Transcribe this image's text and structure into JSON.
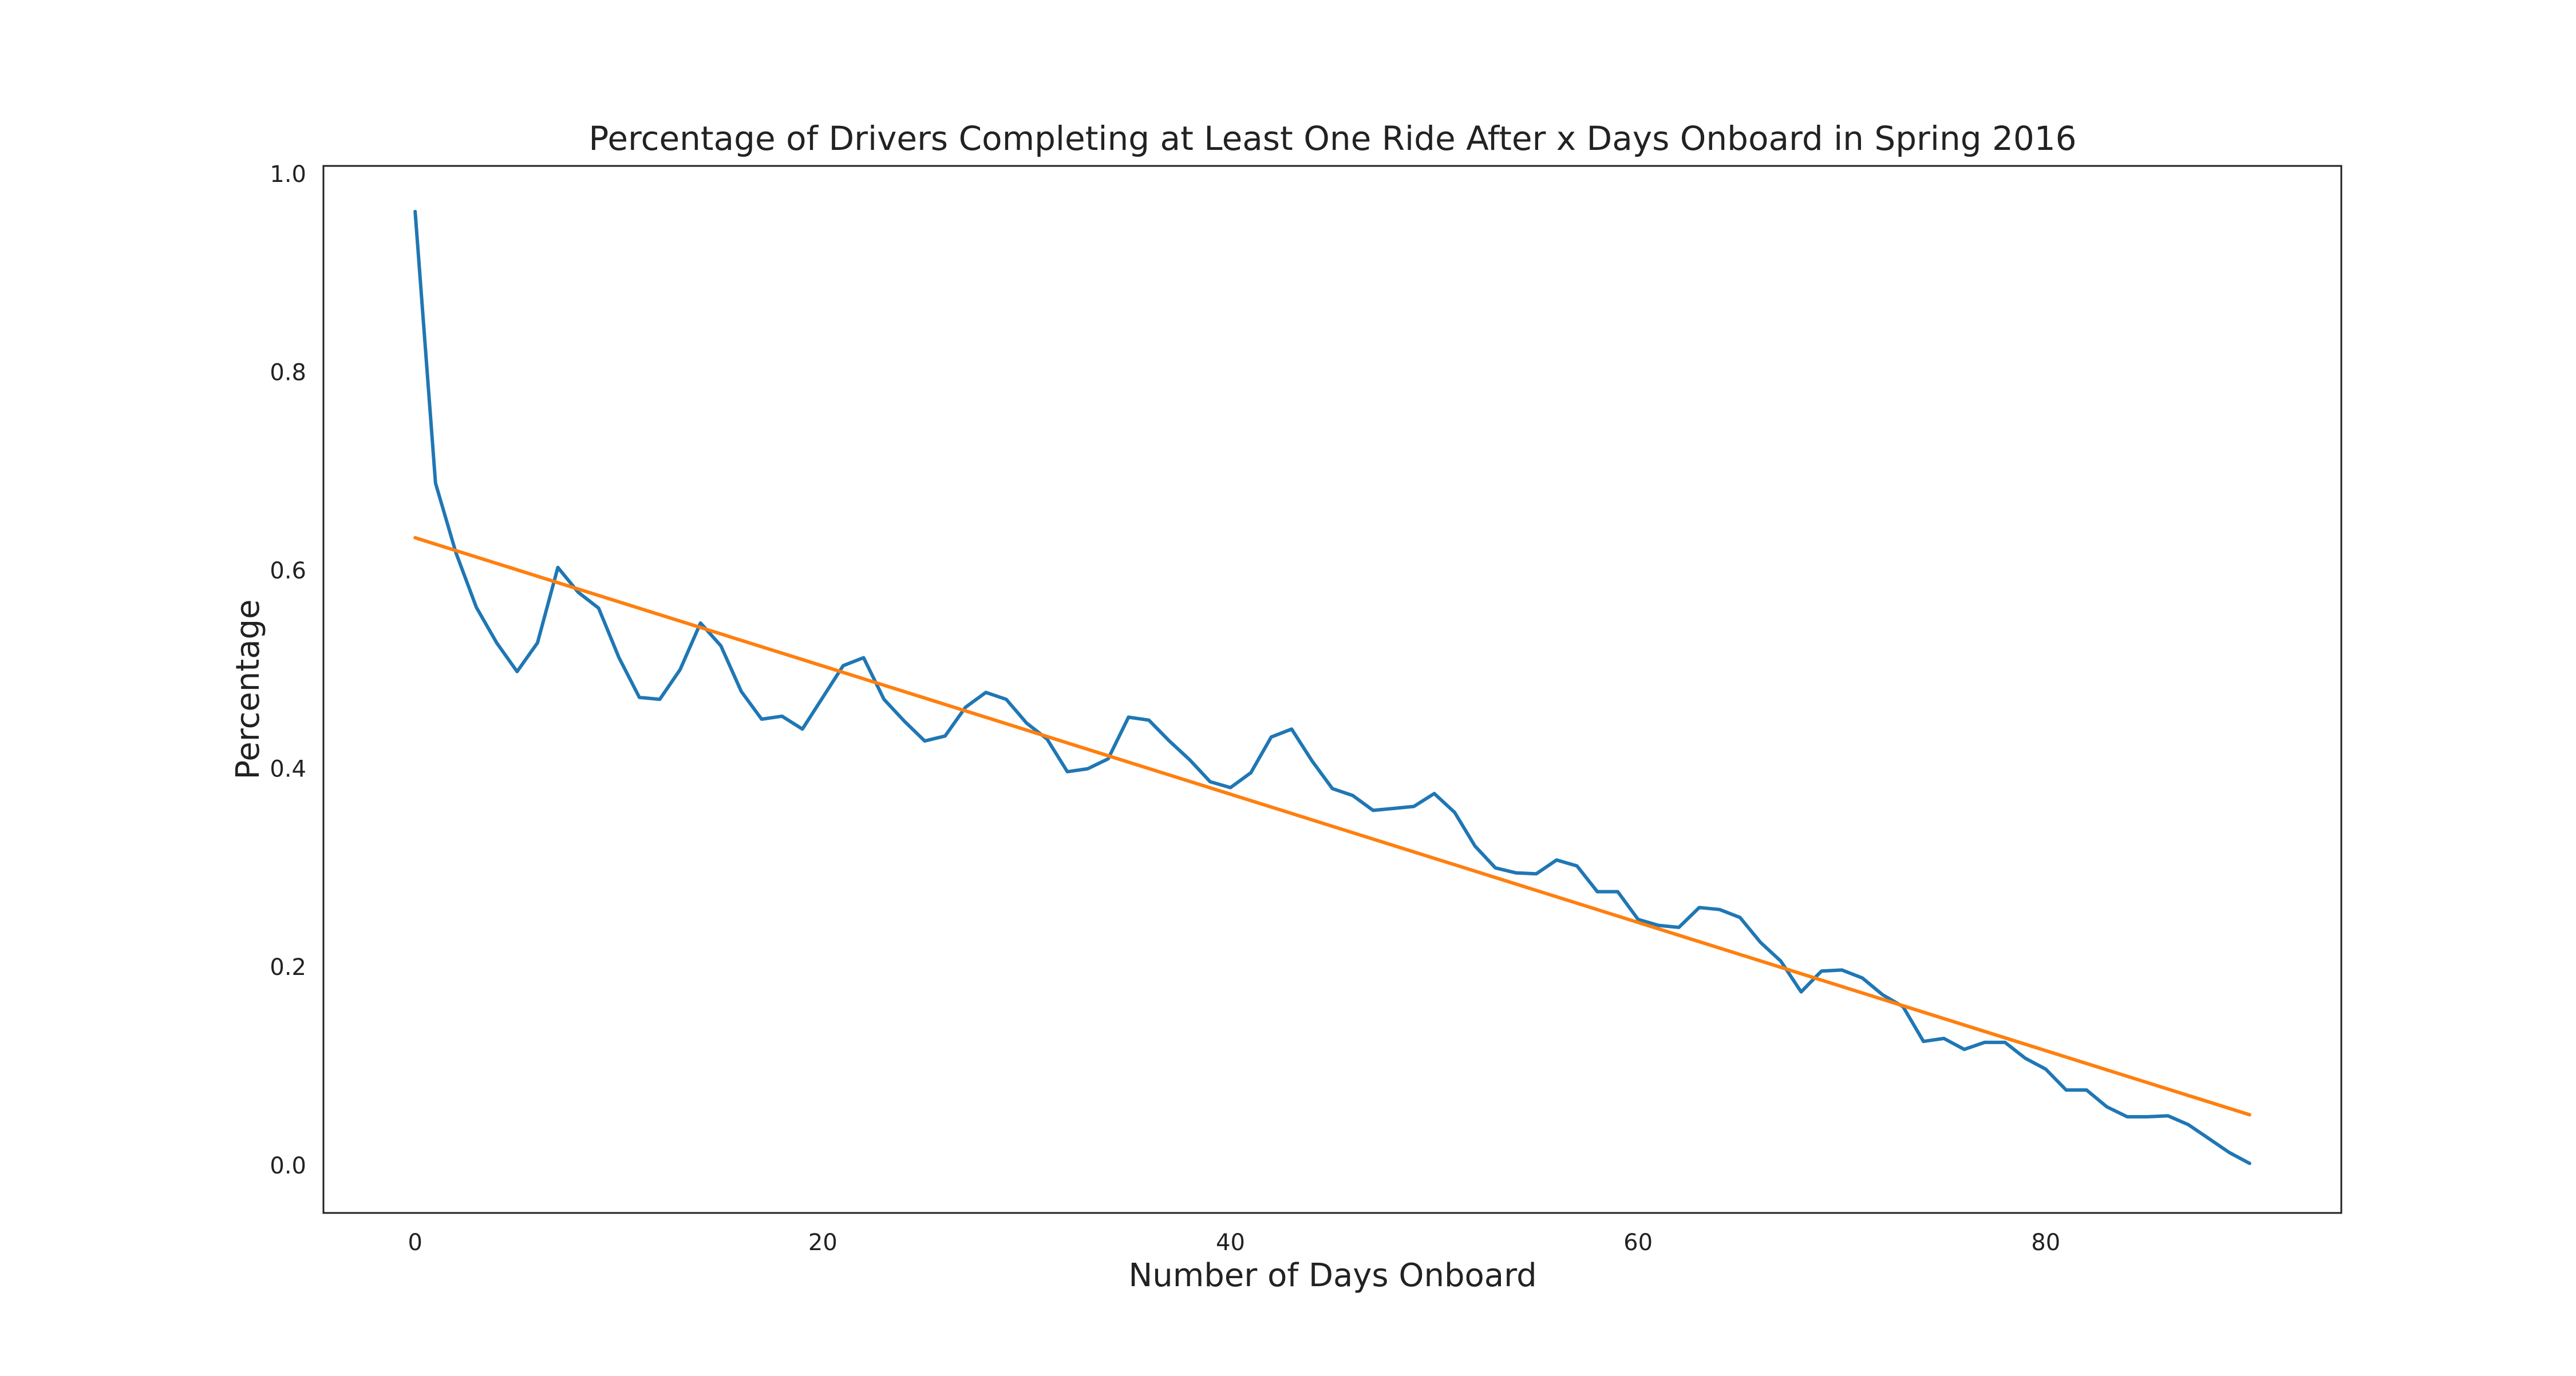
{
  "chart_data": {
    "type": "line",
    "title": "Percentage of Drivers Completing at Least One Ride After x Days Onboard in Spring 2016",
    "xlabel": "Number of Days Onboard",
    "ylabel": "Percentage",
    "xlim": [
      -4.5,
      94.5
    ],
    "ylim": [
      -0.048,
      1.008
    ],
    "x_ticks": [
      0,
      20,
      40,
      60,
      80
    ],
    "y_ticks": [
      0.0,
      0.2,
      0.4,
      0.6,
      0.8,
      1.0
    ],
    "x_tick_labels": [
      "0",
      "20",
      "40",
      "60",
      "80"
    ],
    "y_tick_labels": [
      "0.0",
      "0.2",
      "0.4",
      "0.6",
      "0.8",
      "1.0"
    ],
    "grid": false,
    "legend": "none",
    "series": [
      {
        "color": "#1f77b4",
        "x": [
          0,
          1,
          2,
          3,
          4,
          5,
          6,
          7,
          8,
          9,
          10,
          11,
          12,
          13,
          14,
          15,
          16,
          17,
          18,
          19,
          20,
          21,
          22,
          23,
          24,
          25,
          26,
          27,
          28,
          29,
          30,
          31,
          32,
          33,
          34,
          35,
          36,
          37,
          38,
          39,
          40,
          41,
          42,
          43,
          44,
          45,
          46,
          47,
          48,
          49,
          50,
          51,
          52,
          53,
          54,
          55,
          56,
          57,
          58,
          59,
          60,
          61,
          62,
          63,
          64,
          65,
          66,
          67,
          68,
          69,
          70,
          71,
          72,
          73,
          74,
          75,
          76,
          77,
          78,
          79,
          80,
          81,
          82,
          83,
          84,
          85,
          86,
          87,
          88,
          89,
          90
        ],
        "values": [
          0.962,
          0.688,
          0.618,
          0.563,
          0.527,
          0.498,
          0.527,
          0.603,
          0.578,
          0.562,
          0.512,
          0.472,
          0.47,
          0.5,
          0.547,
          0.524,
          0.478,
          0.45,
          0.453,
          0.44,
          0.472,
          0.504,
          0.512,
          0.47,
          0.448,
          0.428,
          0.433,
          0.462,
          0.477,
          0.47,
          0.446,
          0.43,
          0.397,
          0.4,
          0.41,
          0.452,
          0.449,
          0.428,
          0.409,
          0.387,
          0.381,
          0.396,
          0.432,
          0.44,
          0.408,
          0.38,
          0.373,
          0.358,
          0.36,
          0.362,
          0.375,
          0.356,
          0.322,
          0.3,
          0.295,
          0.294,
          0.308,
          0.302,
          0.276,
          0.276,
          0.248,
          0.242,
          0.24,
          0.26,
          0.258,
          0.25,
          0.225,
          0.206,
          0.175,
          0.196,
          0.197,
          0.189,
          0.172,
          0.16,
          0.125,
          0.128,
          0.117,
          0.124,
          0.124,
          0.108,
          0.097,
          0.076,
          0.076,
          0.059,
          0.049,
          0.049,
          0.05,
          0.041,
          0.027,
          0.013,
          0.002
        ]
      },
      {
        "color": "#ff7f0e",
        "x": [
          0,
          90
        ],
        "values": [
          0.633,
          0.051
        ]
      }
    ]
  }
}
